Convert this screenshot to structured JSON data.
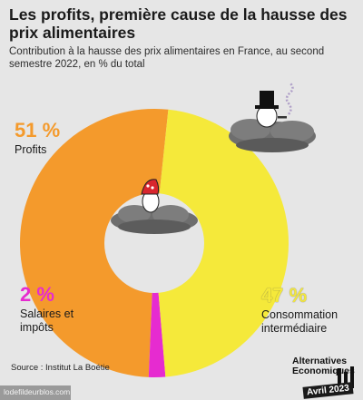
{
  "header": {
    "title": "Les profits, première cause de la hausse des prix alimentaires",
    "subtitle": "Contribution à la hausse des prix alimentaires en France, au second semestre 2022, en % du total"
  },
  "labels": {
    "profits_pct": "51 %",
    "profits_name": "Profits",
    "salaires_pct": "2 %",
    "salaires_name": "Salaires et impôts",
    "conso_pct": "47 %",
    "conso_name": "Consommation intermédiaire"
  },
  "footer": {
    "source": "Source : Institut La Boétie",
    "brand_line1": "Alternatives",
    "brand_line2": "Economiques",
    "date": "Avril 2023",
    "watermark": "lodefildeurblos.com"
  },
  "colors": {
    "profits": "#f49a2c",
    "salaires": "#e62bd0",
    "conso": "#f5e93a",
    "background": "#e6e6e6",
    "hole": "#e6e6e6"
  },
  "icons": [
    "cloud-icon",
    "cloud-icon",
    "capitalist-top-hat-icon",
    "phrygian-cap-figure-icon",
    "smoke-icon"
  ],
  "chart_data": {
    "type": "pie",
    "donut": true,
    "title": "Les profits, première cause de la hausse des prix alimentaires",
    "categories": [
      "Profits",
      "Salaires et impôts",
      "Consommation intermédiaire"
    ],
    "values": [
      51,
      2,
      47
    ],
    "unit": "%"
  }
}
